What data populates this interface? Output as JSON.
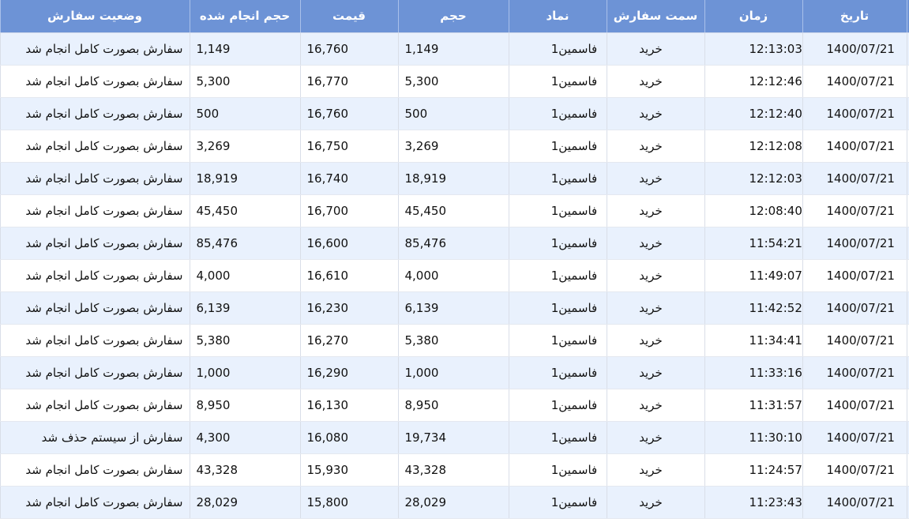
{
  "headers": {
    "date": "تاریخ",
    "time": "زمان",
    "side": "سمت سفارش",
    "symbol": "نماد",
    "volume": "حجم",
    "price": "قیمت",
    "filled": "حجم انجام شده",
    "status": "وضعیت سفارش"
  },
  "rows": [
    {
      "date": "1400/07/21",
      "time": "12:13:03",
      "side": "خرید",
      "symbol": "فاسمین1",
      "volume": "1,149",
      "price": "16,760",
      "filled": "1,149",
      "status": "سفارش بصورت کامل انجام شد"
    },
    {
      "date": "1400/07/21",
      "time": "12:12:46",
      "side": "خرید",
      "symbol": "فاسمین1",
      "volume": "5,300",
      "price": "16,770",
      "filled": "5,300",
      "status": "سفارش بصورت کامل انجام شد"
    },
    {
      "date": "1400/07/21",
      "time": "12:12:40",
      "side": "خرید",
      "symbol": "فاسمین1",
      "volume": "500",
      "price": "16,760",
      "filled": "500",
      "status": "سفارش بصورت کامل انجام شد"
    },
    {
      "date": "1400/07/21",
      "time": "12:12:08",
      "side": "خرید",
      "symbol": "فاسمین1",
      "volume": "3,269",
      "price": "16,750",
      "filled": "3,269",
      "status": "سفارش بصورت کامل انجام شد"
    },
    {
      "date": "1400/07/21",
      "time": "12:12:03",
      "side": "خرید",
      "symbol": "فاسمین1",
      "volume": "18,919",
      "price": "16,740",
      "filled": "18,919",
      "status": "سفارش بصورت کامل انجام شد"
    },
    {
      "date": "1400/07/21",
      "time": "12:08:40",
      "side": "خرید",
      "symbol": "فاسمین1",
      "volume": "45,450",
      "price": "16,700",
      "filled": "45,450",
      "status": "سفارش بصورت کامل انجام شد"
    },
    {
      "date": "1400/07/21",
      "time": "11:54:21",
      "side": "خرید",
      "symbol": "فاسمین1",
      "volume": "85,476",
      "price": "16,600",
      "filled": "85,476",
      "status": "سفارش بصورت کامل انجام شد"
    },
    {
      "date": "1400/07/21",
      "time": "11:49:07",
      "side": "خرید",
      "symbol": "فاسمین1",
      "volume": "4,000",
      "price": "16,610",
      "filled": "4,000",
      "status": "سفارش بصورت کامل انجام شد"
    },
    {
      "date": "1400/07/21",
      "time": "11:42:52",
      "side": "خرید",
      "symbol": "فاسمین1",
      "volume": "6,139",
      "price": "16,230",
      "filled": "6,139",
      "status": "سفارش بصورت کامل انجام شد"
    },
    {
      "date": "1400/07/21",
      "time": "11:34:41",
      "side": "خرید",
      "symbol": "فاسمین1",
      "volume": "5,380",
      "price": "16,270",
      "filled": "5,380",
      "status": "سفارش بصورت کامل انجام شد"
    },
    {
      "date": "1400/07/21",
      "time": "11:33:16",
      "side": "خرید",
      "symbol": "فاسمین1",
      "volume": "1,000",
      "price": "16,290",
      "filled": "1,000",
      "status": "سفارش بصورت کامل انجام شد"
    },
    {
      "date": "1400/07/21",
      "time": "11:31:57",
      "side": "خرید",
      "symbol": "فاسمین1",
      "volume": "8,950",
      "price": "16,130",
      "filled": "8,950",
      "status": "سفارش بصورت کامل انجام شد"
    },
    {
      "date": "1400/07/21",
      "time": "11:30:10",
      "side": "خرید",
      "symbol": "فاسمین1",
      "volume": "19,734",
      "price": "16,080",
      "filled": "4,300",
      "status": "سفارش از سیستم حذف شد"
    },
    {
      "date": "1400/07/21",
      "time": "11:24:57",
      "side": "خرید",
      "symbol": "فاسمین1",
      "volume": "43,328",
      "price": "15,930",
      "filled": "43,328",
      "status": "سفارش بصورت کامل انجام شد"
    },
    {
      "date": "1400/07/21",
      "time": "11:23:43",
      "side": "خرید",
      "symbol": "فاسمین1",
      "volume": "28,029",
      "price": "15,800",
      "filled": "28,029",
      "status": "سفارش بصورت کامل انجام شد"
    }
  ]
}
